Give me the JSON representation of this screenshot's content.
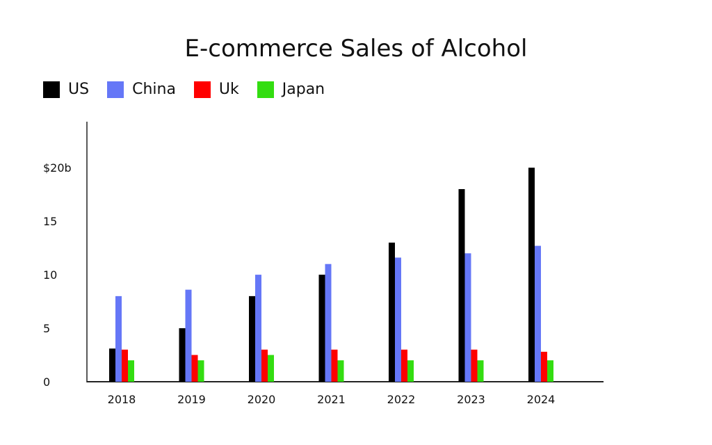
{
  "chart_data": {
    "type": "bar",
    "title": "E-commerce Sales of Alcohol",
    "xlabel": "",
    "ylabel": "",
    "categories": [
      "2018",
      "2019",
      "2020",
      "2021",
      "2022",
      "2023",
      "2024"
    ],
    "series": [
      {
        "name": "US",
        "color": "#000000",
        "values": [
          3.1,
          5.0,
          8.0,
          10.0,
          13.0,
          18.0,
          20.0
        ]
      },
      {
        "name": "China",
        "color": "#6577f7",
        "values": [
          8.0,
          8.6,
          10.0,
          11.0,
          11.6,
          12.0,
          12.7
        ]
      },
      {
        "name": "Uk",
        "color": "#ff0000",
        "values": [
          3.0,
          2.5,
          3.0,
          3.0,
          3.0,
          3.0,
          2.8
        ]
      },
      {
        "name": "Japan",
        "color": "#33dd11",
        "values": [
          2.0,
          2.0,
          2.5,
          2.0,
          2.0,
          2.0,
          2.0
        ]
      }
    ],
    "yticks": [
      0,
      5,
      10,
      15,
      20
    ],
    "ytick_labels": [
      "0",
      "5",
      "10",
      "15",
      "$20b"
    ],
    "ylim": [
      0,
      24.3
    ],
    "grid": false,
    "legend_position": "top-left"
  }
}
